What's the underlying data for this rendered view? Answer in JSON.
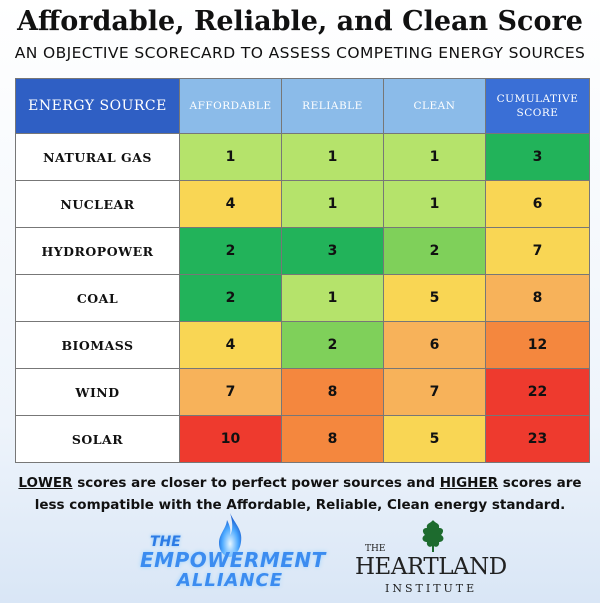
{
  "title": "Affordable, Reliable, and Clean Score",
  "subtitle": "AN OBJECTIVE SCORECARD TO ASSESS COMPETING ENERGY SOURCES",
  "chart_data": {
    "type": "table",
    "columns": [
      "ENERGY SOURCE",
      "AFFORDABLE",
      "RELIABLE",
      "CLEAN",
      "CUMULATIVE SCORE"
    ],
    "rows": [
      {
        "source": "NATURAL GAS",
        "affordable": 1,
        "reliable": 1,
        "clean": 1,
        "cumulative": 3
      },
      {
        "source": "NUCLEAR",
        "affordable": 4,
        "reliable": 1,
        "clean": 1,
        "cumulative": 6
      },
      {
        "source": "HYDROPOWER",
        "affordable": 2,
        "reliable": 3,
        "clean": 2,
        "cumulative": 7
      },
      {
        "source": "COAL",
        "affordable": 2,
        "reliable": 1,
        "clean": 5,
        "cumulative": 8
      },
      {
        "source": "BIOMASS",
        "affordable": 4,
        "reliable": 2,
        "clean": 6,
        "cumulative": 12
      },
      {
        "source": "WIND",
        "affordable": 7,
        "reliable": 8,
        "clean": 7,
        "cumulative": 22
      },
      {
        "source": "SOLAR",
        "affordable": 10,
        "reliable": 8,
        "clean": 5,
        "cumulative": 23
      }
    ],
    "cell_colors": [
      [
        "#b5e36b",
        "#b5e36b",
        "#b5e36b",
        "#22b35a"
      ],
      [
        "#f9d654",
        "#b5e36b",
        "#b5e36b",
        "#f9d654"
      ],
      [
        "#22b35a",
        "#22b35a",
        "#7fd05a",
        "#f9d654"
      ],
      [
        "#22b35a",
        "#b5e36b",
        "#f9d654",
        "#f7b25a"
      ],
      [
        "#f9d654",
        "#7fd05a",
        "#f7b25a",
        "#f4873e"
      ],
      [
        "#f7b25a",
        "#f4873e",
        "#f7b25a",
        "#ee3a2e"
      ],
      [
        "#ee3a2e",
        "#f4873e",
        "#f9d654",
        "#ee3a2e"
      ]
    ]
  },
  "note": {
    "lower": "LOWER",
    "part1": " scores are closer to perfect power sources and ",
    "higher": "HIGHER",
    "part2": " scores are less compatible with the Affordable, Reliable, Clean energy standard."
  },
  "logos": {
    "empowerment_the": "THE",
    "empowerment_main": "EMPOWERMENT",
    "empowerment_sub": "ALLIANCE",
    "heartland_the": "THE",
    "heartland_name": "HEARTLAND",
    "heartland_inst": "INSTITUTE"
  }
}
